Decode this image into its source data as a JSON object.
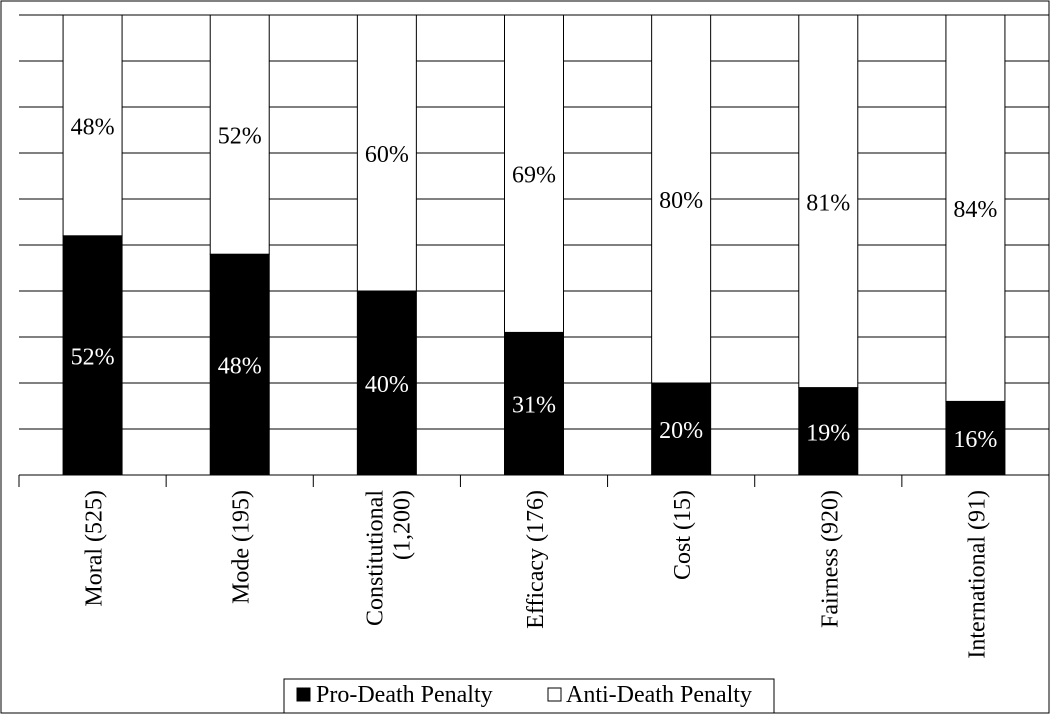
{
  "chart_data": {
    "type": "bar",
    "stacked": true,
    "categories": [
      "Moral (525)",
      "Mode (195)",
      "Constitutional (1,200)",
      "Efficacy (176)",
      "Cost (15)",
      "Fairness (920)",
      "International (91)"
    ],
    "series": [
      {
        "name": "Pro-Death Penalty",
        "color": "#000000",
        "values": [
          52,
          48,
          40,
          31,
          20,
          19,
          16
        ],
        "labels": [
          "52%",
          "48%",
          "40%",
          "31%",
          "20%",
          "19%",
          "16%"
        ]
      },
      {
        "name": "Anti-Death Penalty",
        "color": "#ffffff",
        "values": [
          48,
          52,
          60,
          69,
          80,
          81,
          84
        ],
        "labels": [
          "48%",
          "52%",
          "60%",
          "69%",
          "80%",
          "81%",
          "84%"
        ]
      }
    ],
    "ylim": [
      0,
      100
    ],
    "grid": true,
    "legend_position": "bottom"
  }
}
